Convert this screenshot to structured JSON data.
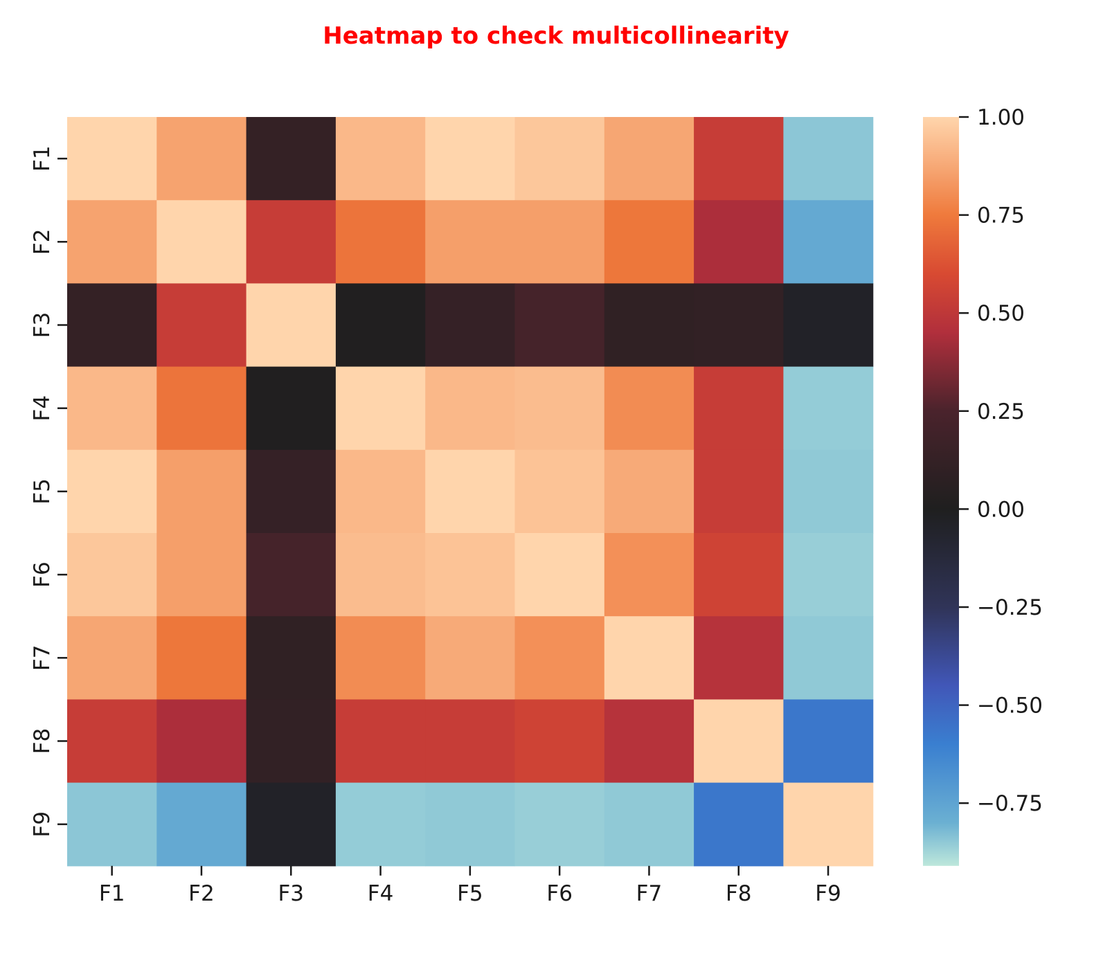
{
  "chart_data": {
    "type": "heatmap",
    "title": "Heatmap to check multicollinearity",
    "xlabel": "",
    "ylabel": "",
    "x_categories": [
      "F1",
      "F2",
      "F3",
      "F4",
      "F5",
      "F6",
      "F7",
      "F8",
      "F9"
    ],
    "y_categories": [
      "F1",
      "F2",
      "F3",
      "F4",
      "F5",
      "F6",
      "F7",
      "F8",
      "F9"
    ],
    "values": [
      [
        1.0,
        0.86,
        0.12,
        0.92,
        1.0,
        0.96,
        0.87,
        0.53,
        -0.88
      ],
      [
        0.86,
        1.0,
        0.53,
        0.73,
        0.85,
        0.85,
        0.74,
        0.44,
        -0.77
      ],
      [
        0.12,
        0.53,
        1.0,
        0.01,
        0.13,
        0.22,
        0.1,
        0.11,
        -0.04
      ],
      [
        0.92,
        0.73,
        0.01,
        1.0,
        0.92,
        0.93,
        0.8,
        0.53,
        -0.9
      ],
      [
        1.0,
        0.85,
        0.13,
        0.92,
        1.0,
        0.95,
        0.88,
        0.53,
        -0.89
      ],
      [
        0.96,
        0.85,
        0.22,
        0.93,
        0.95,
        1.0,
        0.81,
        0.56,
        -0.91
      ],
      [
        0.87,
        0.74,
        0.1,
        0.8,
        0.88,
        0.81,
        1.0,
        0.47,
        -0.89
      ],
      [
        0.53,
        0.44,
        0.11,
        0.53,
        0.53,
        0.56,
        0.47,
        1.0,
        -0.57
      ],
      [
        -0.88,
        -0.77,
        -0.04,
        -0.9,
        -0.89,
        -0.91,
        -0.89,
        -0.57,
        1.0
      ]
    ],
    "colorbar": {
      "range": [
        -0.91,
        1.0
      ],
      "ticks": [
        1.0,
        0.75,
        0.5,
        0.25,
        0.0,
        -0.25,
        -0.5,
        -0.75
      ],
      "tick_labels": [
        "1.00",
        "0.75",
        "0.50",
        "0.25",
        "0.00",
        "−0.25",
        "−0.50",
        "−0.75"
      ],
      "colormap": "icefire",
      "colormap_stops": [
        {
          "v": -1.0,
          "color": "#bde7db"
        },
        {
          "v": -0.8,
          "color": "#6bb0d2"
        },
        {
          "v": -0.6,
          "color": "#3a7fd0"
        },
        {
          "v": -0.45,
          "color": "#4157b8"
        },
        {
          "v": -0.25,
          "color": "#303458"
        },
        {
          "v": 0.0,
          "color": "#1f1f1f"
        },
        {
          "v": 0.25,
          "color": "#4a232c"
        },
        {
          "v": 0.45,
          "color": "#b12f3c"
        },
        {
          "v": 0.6,
          "color": "#d84a32"
        },
        {
          "v": 0.75,
          "color": "#ef7a3c"
        },
        {
          "v": 0.88,
          "color": "#f7aa78"
        },
        {
          "v": 1.0,
          "color": "#ffd5ac"
        }
      ]
    },
    "grid": false,
    "legend": "colorbar-right"
  }
}
